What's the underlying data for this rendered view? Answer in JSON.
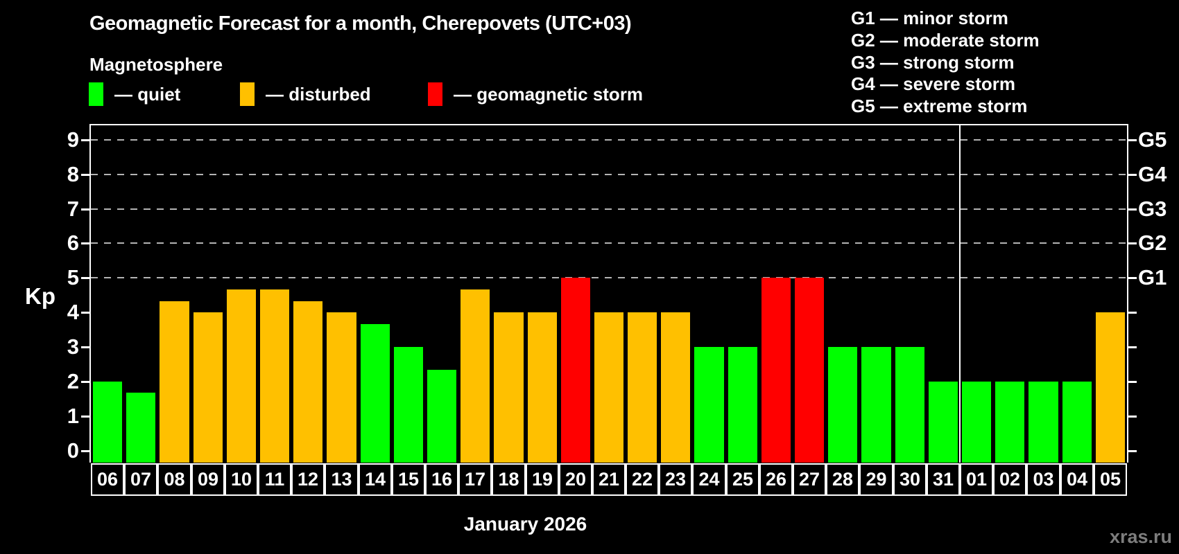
{
  "title": "Geomagnetic Forecast for a month, Cherepovets (UTC+03)",
  "subtitle": "Magnetosphere",
  "watermark": "xras.ru",
  "colors": {
    "background": "#000000",
    "quiet": "#00ff00",
    "disturbed": "#ffc000",
    "storm": "#ff0000",
    "grid": "#b4b4b4",
    "axis": "#ffffff",
    "watermark": "#7d7d7d"
  },
  "legend": {
    "items": [
      {
        "key": "quiet",
        "label": "— quiet",
        "color": "#00ff00"
      },
      {
        "key": "disturbed",
        "label": "— disturbed",
        "color": "#ffc000"
      },
      {
        "key": "storm",
        "label": "— geomagnetic storm",
        "color": "#ff0000"
      }
    ]
  },
  "g_scale_legend": {
    "items": [
      "G1 — minor storm",
      "G2 — moderate storm",
      "G3 — strong storm",
      "G4 — severe storm",
      "G5 — extreme storm"
    ]
  },
  "chart_data": {
    "type": "bar",
    "title": "Geomagnetic Forecast for a month, Cherepovets (UTC+03)",
    "ylabel": "Kp",
    "month_label": "January 2026",
    "ylim": [
      -0.35,
      9.42
    ],
    "grid": "horizontal dashed lines at Kp 5..9 only (G1..G5 levels)",
    "legend_position": "top",
    "categories": [
      "06",
      "07",
      "08",
      "09",
      "10",
      "11",
      "12",
      "13",
      "14",
      "15",
      "16",
      "17",
      "18",
      "19",
      "20",
      "21",
      "22",
      "23",
      "24",
      "25",
      "26",
      "27",
      "28",
      "29",
      "30",
      "31",
      "01",
      "02",
      "03",
      "04",
      "05"
    ],
    "values": [
      2,
      1.67,
      4.33,
      4,
      4.67,
      4.67,
      4.33,
      4,
      3.67,
      3,
      2.33,
      4.67,
      4,
      4,
      5,
      4,
      4,
      4,
      3,
      3,
      5,
      5,
      3,
      3,
      3,
      2,
      2,
      2,
      2,
      2,
      4
    ],
    "states": [
      "quiet",
      "quiet",
      "disturbed",
      "disturbed",
      "disturbed",
      "disturbed",
      "disturbed",
      "disturbed",
      "quiet",
      "quiet",
      "quiet",
      "disturbed",
      "disturbed",
      "disturbed",
      "storm",
      "disturbed",
      "disturbed",
      "disturbed",
      "quiet",
      "quiet",
      "storm",
      "storm",
      "quiet",
      "quiet",
      "quiet",
      "quiet",
      "quiet",
      "quiet",
      "quiet",
      "quiet",
      "disturbed"
    ],
    "left_axis_ticks": [
      0,
      1,
      2,
      3,
      4,
      5,
      6,
      7,
      8,
      9
    ],
    "right_axis_labels": {
      "5": "G1",
      "6": "G2",
      "7": "G3",
      "8": "G4",
      "9": "G5"
    },
    "month_separator_after_index": 25
  }
}
